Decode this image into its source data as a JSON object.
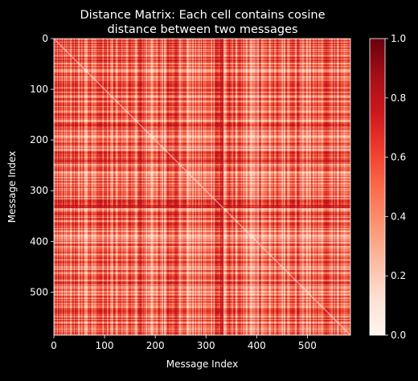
{
  "chart_data": {
    "type": "heatmap",
    "title": "Distance Matrix: Each cell contains cosine\ndistance between two messages",
    "xlabel": "Message Index",
    "ylabel": "Message Index",
    "n": 585,
    "xlim": [
      0,
      585
    ],
    "ylim": [
      0,
      585
    ],
    "x_ticks": [
      0,
      100,
      200,
      300,
      400,
      500
    ],
    "y_ticks": [
      0,
      100,
      200,
      300,
      400,
      500
    ],
    "y_inverted": true,
    "colormap": "Reds",
    "colormap_stops": [
      "#fff5f0",
      "#fee0d2",
      "#fcbba1",
      "#fc9272",
      "#fb6a4a",
      "#ef3b2c",
      "#cb181d",
      "#a50f15",
      "#67000d"
    ],
    "colorbar": {
      "range": [
        0.0,
        1.0
      ],
      "ticks": [
        "0.0",
        "0.2",
        "0.4",
        "0.6",
        "0.8",
        "1.0"
      ]
    },
    "value_range_observed": [
      0.1,
      0.8
    ],
    "diagonal_value": 0.0,
    "darker_index_bands": [
      170,
      240,
      330,
      365
    ],
    "lighter_index_regions": [
      [
        180,
        300
      ],
      [
        380,
        470
      ]
    ]
  },
  "colors": {
    "background": "#000000",
    "text": "#ffffff",
    "axis": "#ffffff"
  }
}
